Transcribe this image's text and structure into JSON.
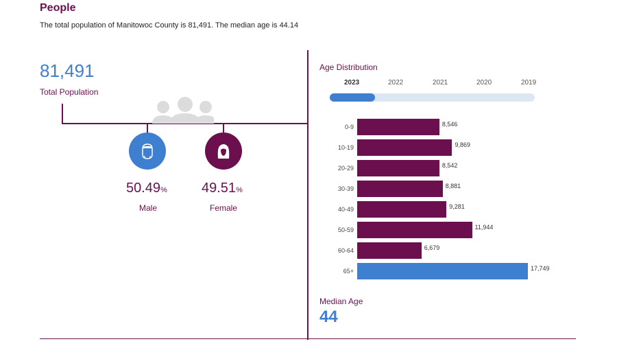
{
  "header": {
    "title": "People",
    "subtitle": "The total population of Manitowoc County is 81,491. The median age is 44.14"
  },
  "population": {
    "total_value": "81,491",
    "total_label": "Total Population",
    "icon": "people-group-icon"
  },
  "gender": {
    "male": {
      "value": "50.49",
      "symbol": "%",
      "label": "Male",
      "icon": "male-face-icon",
      "color": "#3f7fcf"
    },
    "female": {
      "value": "49.51",
      "symbol": "%",
      "label": "Female",
      "icon": "female-face-icon",
      "color": "#6b0f4e"
    }
  },
  "age_distribution": {
    "title": "Age Distribution",
    "years": [
      "2023",
      "2022",
      "2021",
      "2020",
      "2019"
    ],
    "selected_year": "2023",
    "selected_fraction": 0.22
  },
  "chart_data": {
    "type": "bar",
    "orientation": "horizontal",
    "categories": [
      "0-9",
      "10-19",
      "20-29",
      "30-39",
      "40-49",
      "50-59",
      "60-64",
      "65+"
    ],
    "values": [
      8546,
      9869,
      8542,
      8881,
      9281,
      11944,
      6679,
      17749
    ],
    "value_labels": [
      "8,546",
      "9,869",
      "8,542",
      "8,881",
      "9,281",
      "11,944",
      "6,679",
      "17,749"
    ],
    "colors": [
      "#6b0f4e",
      "#6b0f4e",
      "#6b0f4e",
      "#6b0f4e",
      "#6b0f4e",
      "#6b0f4e",
      "#6b0f4e",
      "#3f7fcf"
    ],
    "xlim": [
      0,
      17749
    ],
    "grid": false
  },
  "median_age": {
    "label": "Median Age",
    "value": "44"
  }
}
